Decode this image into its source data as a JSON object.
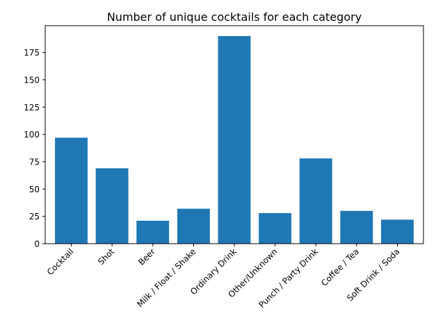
{
  "chart_data": {
    "type": "bar",
    "title": "Number of unique cocktails for each category",
    "xlabel": "",
    "ylabel": "",
    "categories": [
      "Cocktail",
      "Shot",
      "Beer",
      "Milk / Float / Shake",
      "Ordinary Drink",
      "Other/Unknown",
      "Punch / Party Drink",
      "Coffee / Tea",
      "Soft Drink / Soda"
    ],
    "values": [
      97,
      69,
      21,
      32,
      190,
      28,
      78,
      30,
      22
    ],
    "ylim": [
      0,
      199.5
    ],
    "yticks": [
      0,
      25,
      50,
      75,
      100,
      125,
      150,
      175
    ],
    "grid": false,
    "bar_color": "#1f77b4"
  }
}
